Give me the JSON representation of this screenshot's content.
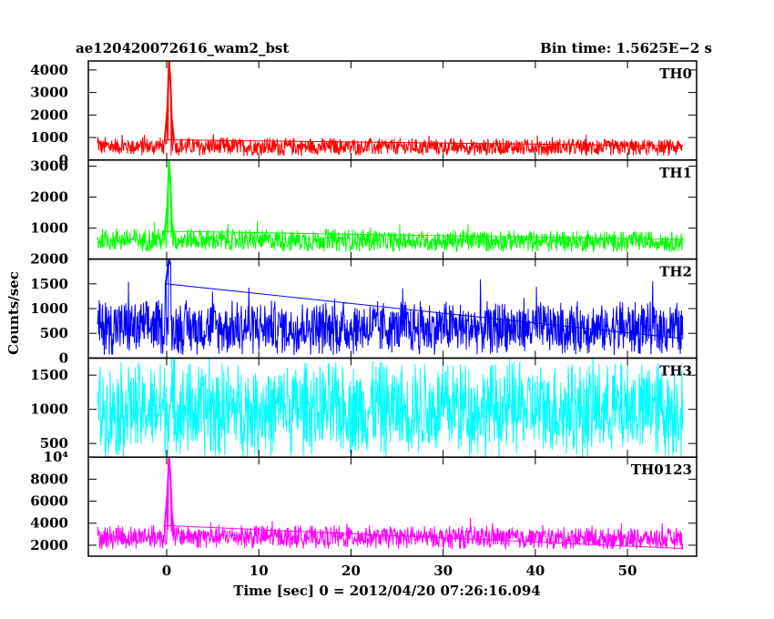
{
  "header": {
    "title": "ae120420072616_wam2_bst",
    "bin_time": "Bin time: 1.5625E−2 s"
  },
  "axes": {
    "xlabel": "Time [sec] 0 = 2012/04/20 07:26:16.094",
    "ylabel": "Counts/sec"
  },
  "chart_data": {
    "type": "line",
    "title": "ae120420072616_wam2_bst",
    "subtitle": "Bin time: 1.5625E−2 s",
    "xlabel": "Time [sec] 0 = 2012/04/20 07:26:16.094",
    "ylabel": "Counts/sec",
    "xlim": [
      -8.5,
      57.5
    ],
    "xticks": [
      0,
      10,
      20,
      30,
      40,
      50
    ],
    "data_x_range": [
      -7.5,
      56
    ],
    "bin_time": 0.015625,
    "grid": false,
    "panels": [
      {
        "name": "TH0",
        "color": "#ff0000",
        "ylim": [
          0,
          4400
        ],
        "yticks": [
          0,
          1000,
          2000,
          3000,
          4000
        ],
        "ytick_labels": [
          "0",
          "1000",
          "2000",
          "3000",
          "4000"
        ],
        "background": [
          {
            "t": -7.5,
            "mean": 620,
            "spread": 420
          },
          {
            "t": 0,
            "mean": 600,
            "spread": 420
          },
          {
            "t": 56,
            "mean": 560,
            "spread": 380
          }
        ],
        "peak_points": [
          {
            "x": -0.2,
            "y": 900
          },
          {
            "x": 0.1,
            "y": 2400
          },
          {
            "x": 0.25,
            "y": 4400
          },
          {
            "x": 0.4,
            "y": 3600
          },
          {
            "x": 0.55,
            "y": 1800
          },
          {
            "x": 0.8,
            "y": 900
          }
        ]
      },
      {
        "name": "TH1",
        "color": "#00ff00",
        "ylim": [
          0,
          3200
        ],
        "yticks": [
          0,
          1000,
          2000,
          3000
        ],
        "ytick_labels": [
          "0",
          "1000",
          "2000",
          "3000"
        ],
        "background": [
          {
            "t": -7.5,
            "mean": 620,
            "spread": 380
          },
          {
            "t": 0,
            "mean": 620,
            "spread": 380
          },
          {
            "t": 56,
            "mean": 560,
            "spread": 340
          }
        ],
        "peak_points": [
          {
            "x": -0.2,
            "y": 900
          },
          {
            "x": 0.1,
            "y": 1800
          },
          {
            "x": 0.25,
            "y": 3200
          },
          {
            "x": 0.4,
            "y": 2500
          },
          {
            "x": 0.55,
            "y": 1200
          },
          {
            "x": 0.8,
            "y": 800
          }
        ]
      },
      {
        "name": "TH2",
        "color": "#0000ff",
        "ylim": [
          0,
          2000
        ],
        "yticks": [
          0,
          500,
          1000,
          1500,
          2000
        ],
        "ytick_labels": [
          "0",
          "500",
          "1000",
          "1500",
          "2000"
        ],
        "background": [
          {
            "t": -7.5,
            "mean": 620,
            "spread": 560
          },
          {
            "t": 0,
            "mean": 620,
            "spread": 560
          },
          {
            "t": 56,
            "mean": 600,
            "spread": 540
          }
        ],
        "peak_points": [
          {
            "x": -0.1,
            "y": 1500
          },
          {
            "x": 0.25,
            "y": 2000
          },
          {
            "x": 0.4,
            "y": 1900
          }
        ]
      },
      {
        "name": "TH3",
        "color": "#00ffff",
        "ylim": [
          300,
          1750
        ],
        "yticks": [
          500,
          1000,
          1500
        ],
        "ytick_labels": [
          "500",
          "1000",
          "1500"
        ],
        "background": [
          {
            "t": -7.5,
            "mean": 1000,
            "spread": 700
          },
          {
            "t": 0,
            "mean": 1000,
            "spread": 700
          },
          {
            "t": 56,
            "mean": 1000,
            "spread": 700
          }
        ],
        "peak_points": []
      },
      {
        "name": "TH0123",
        "color": "#ff00ff",
        "ylim": [
          1000,
          10000
        ],
        "yticks": [
          2000,
          4000,
          6000,
          8000,
          10000
        ],
        "ytick_labels": [
          "2000",
          "4000",
          "6000",
          "8000",
          "10⁴"
        ],
        "background": [
          {
            "t": -7.5,
            "mean": 2700,
            "spread": 1100
          },
          {
            "t": 0,
            "mean": 2800,
            "spread": 1100
          },
          {
            "t": 56,
            "mean": 2600,
            "spread": 1000
          }
        ],
        "peak_points": [
          {
            "x": -0.2,
            "y": 3800
          },
          {
            "x": 0.1,
            "y": 7000
          },
          {
            "x": 0.25,
            "y": 10000
          },
          {
            "x": 0.4,
            "y": 8500
          },
          {
            "x": 0.55,
            "y": 5000
          },
          {
            "x": 0.8,
            "y": 3200
          }
        ]
      }
    ]
  }
}
